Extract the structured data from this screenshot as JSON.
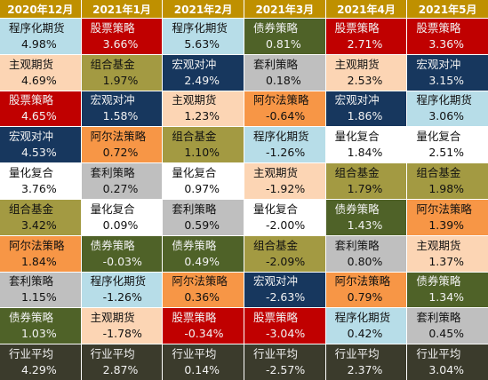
{
  "header": {
    "columns": [
      "2020年12月",
      "2021年1月",
      "2021年2月",
      "2021年3月",
      "2021年4月",
      "2021年5月"
    ]
  },
  "table": {
    "columns": [
      [
        {
          "name": "程序化期货",
          "value": "4.98%",
          "color": "#b7dde8"
        },
        {
          "name": "主观期货",
          "value": "4.69%",
          "color": "#fcd5b4"
        },
        {
          "name": "股票策略",
          "value": "4.65%",
          "color": "#c00000"
        },
        {
          "name": "宏观对冲",
          "value": "4.53%",
          "color": "#17375e"
        },
        {
          "name": "量化复合",
          "value": "3.76%",
          "color": "#ffffff"
        },
        {
          "name": "组合基金",
          "value": "3.42%",
          "color": "#a39a42"
        },
        {
          "name": "阿尔法策略",
          "value": "1.84%",
          "color": "#f79646"
        },
        {
          "name": "套利策略",
          "value": "1.15%",
          "color": "#bfbfbf"
        },
        {
          "name": "债券策略",
          "value": "1.03%",
          "color": "#4f6228"
        },
        {
          "name": "行业平均",
          "value": "4.29%",
          "color": "#3b3b2c"
        }
      ],
      [
        {
          "name": "股票策略",
          "value": "3.66%",
          "color": "#c00000"
        },
        {
          "name": "组合基金",
          "value": "1.97%",
          "color": "#a39a42"
        },
        {
          "name": "宏观对冲",
          "value": "1.58%",
          "color": "#17375e"
        },
        {
          "name": "阿尔法策略",
          "value": "0.72%",
          "color": "#f79646"
        },
        {
          "name": "套利策略",
          "value": "0.27%",
          "color": "#bfbfbf"
        },
        {
          "name": "量化复合",
          "value": "0.09%",
          "color": "#ffffff"
        },
        {
          "name": "债券策略",
          "value": "-0.03%",
          "color": "#4f6228"
        },
        {
          "name": "程序化期货",
          "value": "-1.26%",
          "color": "#b7dde8"
        },
        {
          "name": "主观期货",
          "value": "-1.78%",
          "color": "#fcd5b4"
        },
        {
          "name": "行业平均",
          "value": "2.87%",
          "color": "#3b3b2c"
        }
      ],
      [
        {
          "name": "程序化期货",
          "value": "5.63%",
          "color": "#b7dde8"
        },
        {
          "name": "宏观对冲",
          "value": "2.49%",
          "color": "#17375e"
        },
        {
          "name": "主观期货",
          "value": "1.23%",
          "color": "#fcd5b4"
        },
        {
          "name": "组合基金",
          "value": "1.10%",
          "color": "#a39a42"
        },
        {
          "name": "量化复合",
          "value": "0.97%",
          "color": "#ffffff"
        },
        {
          "name": "套利策略",
          "value": "0.59%",
          "color": "#bfbfbf"
        },
        {
          "name": "债券策略",
          "value": "0.49%",
          "color": "#4f6228"
        },
        {
          "name": "阿尔法策略",
          "value": "0.36%",
          "color": "#f79646"
        },
        {
          "name": "股票策略",
          "value": "-0.34%",
          "color": "#c00000"
        },
        {
          "name": "行业平均",
          "value": "0.14%",
          "color": "#3b3b2c"
        }
      ],
      [
        {
          "name": "债券策略",
          "value": "0.81%",
          "color": "#4f6228"
        },
        {
          "name": "套利策略",
          "value": "0.18%",
          "color": "#bfbfbf"
        },
        {
          "name": "阿尔法策略",
          "value": "-0.64%",
          "color": "#f79646"
        },
        {
          "name": "程序化期货",
          "value": "-1.26%",
          "color": "#b7dde8"
        },
        {
          "name": "主观期货",
          "value": "-1.92%",
          "color": "#fcd5b4"
        },
        {
          "name": "量化复合",
          "value": "-2.00%",
          "color": "#ffffff"
        },
        {
          "name": "组合基金",
          "value": "-2.09%",
          "color": "#a39a42"
        },
        {
          "name": "宏观对冲",
          "value": "-2.63%",
          "color": "#17375e"
        },
        {
          "name": "股票策略",
          "value": "-3.04%",
          "color": "#c00000"
        },
        {
          "name": "行业平均",
          "value": "-2.57%",
          "color": "#3b3b2c"
        }
      ],
      [
        {
          "name": "股票策略",
          "value": "2.71%",
          "color": "#c00000"
        },
        {
          "name": "主观期货",
          "value": "2.53%",
          "color": "#fcd5b4"
        },
        {
          "name": "宏观对冲",
          "value": "1.86%",
          "color": "#17375e"
        },
        {
          "name": "量化复合",
          "value": "1.84%",
          "color": "#ffffff"
        },
        {
          "name": "组合基金",
          "value": "1.79%",
          "color": "#a39a42"
        },
        {
          "name": "债券策略",
          "value": "1.43%",
          "color": "#4f6228"
        },
        {
          "name": "套利策略",
          "value": "0.80%",
          "color": "#bfbfbf"
        },
        {
          "name": "阿尔法策略",
          "value": "0.79%",
          "color": "#f79646"
        },
        {
          "name": "程序化期货",
          "value": "0.42%",
          "color": "#b7dde8"
        },
        {
          "name": "行业平均",
          "value": "2.37%",
          "color": "#3b3b2c"
        }
      ],
      [
        {
          "name": "股票策略",
          "value": "3.36%",
          "color": "#c00000"
        },
        {
          "name": "宏观对冲",
          "value": "3.15%",
          "color": "#17375e"
        },
        {
          "name": "程序化期货",
          "value": "3.06%",
          "color": "#b7dde8"
        },
        {
          "name": "量化复合",
          "value": "2.51%",
          "color": "#ffffff"
        },
        {
          "name": "组合基金",
          "value": "1.98%",
          "color": "#a39a42"
        },
        {
          "name": "阿尔法策略",
          "value": "1.39%",
          "color": "#f79646"
        },
        {
          "name": "主观期货",
          "value": "1.37%",
          "color": "#fcd5b4"
        },
        {
          "name": "债券策略",
          "value": "1.34%",
          "color": "#4f6228"
        },
        {
          "name": "套利策略",
          "value": "0.45%",
          "color": "#bfbfbf"
        },
        {
          "name": "行业平均",
          "value": "3.04%",
          "color": "#3b3b2c"
        }
      ]
    ]
  }
}
